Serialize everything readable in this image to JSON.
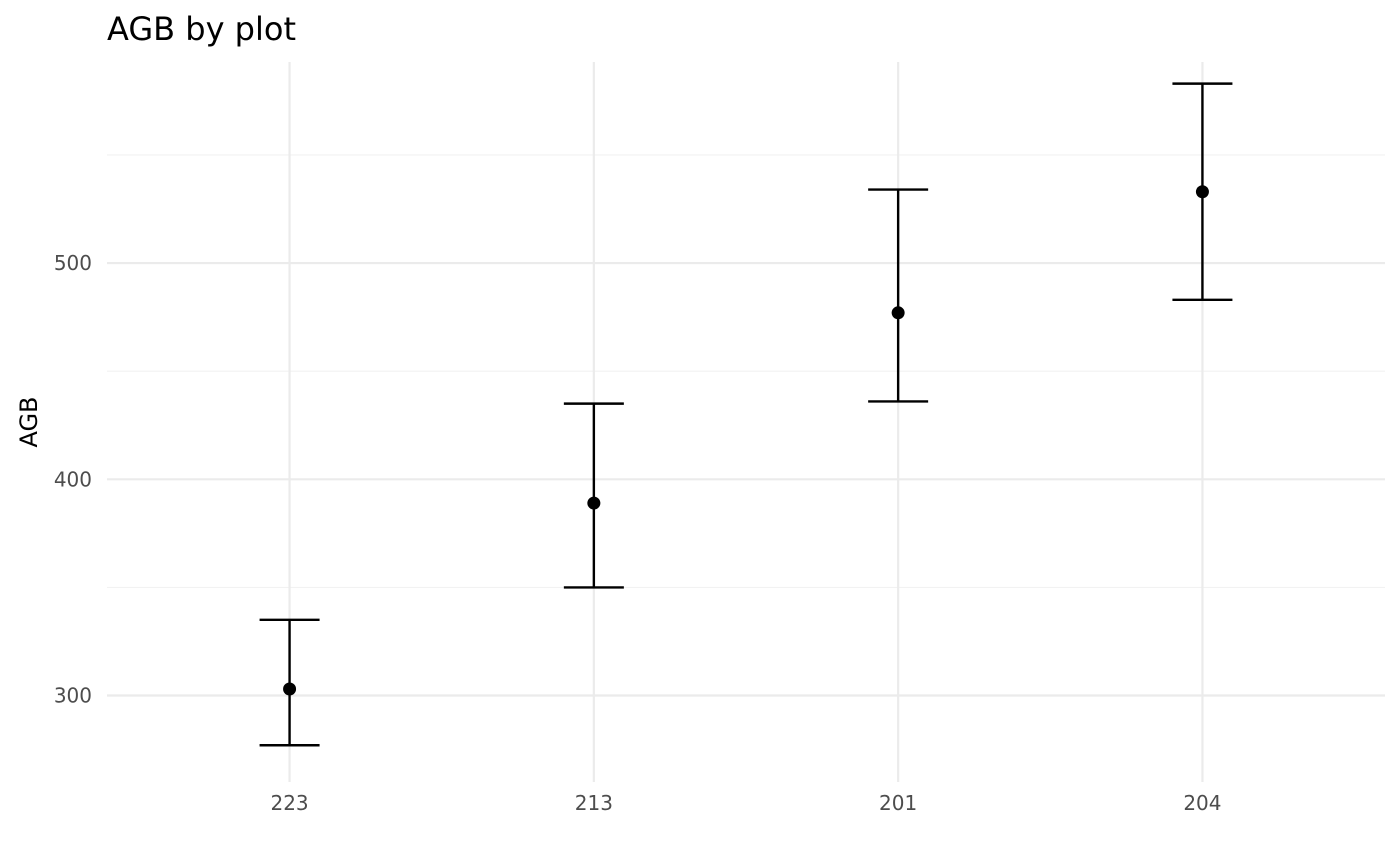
{
  "chart_data": {
    "type": "scatter",
    "title": "AGB by plot",
    "xlabel": "",
    "ylabel": "AGB",
    "categories": [
      "223",
      "213",
      "201",
      "204"
    ],
    "series": [
      {
        "values": [
          303,
          389,
          477,
          533
        ],
        "lower": [
          277,
          350,
          436,
          483
        ],
        "upper": [
          335,
          435,
          534,
          583
        ]
      }
    ],
    "ylim": [
      260,
      593
    ],
    "y_ticks": [
      300,
      400,
      500
    ],
    "grid": true,
    "error_bars": true
  }
}
